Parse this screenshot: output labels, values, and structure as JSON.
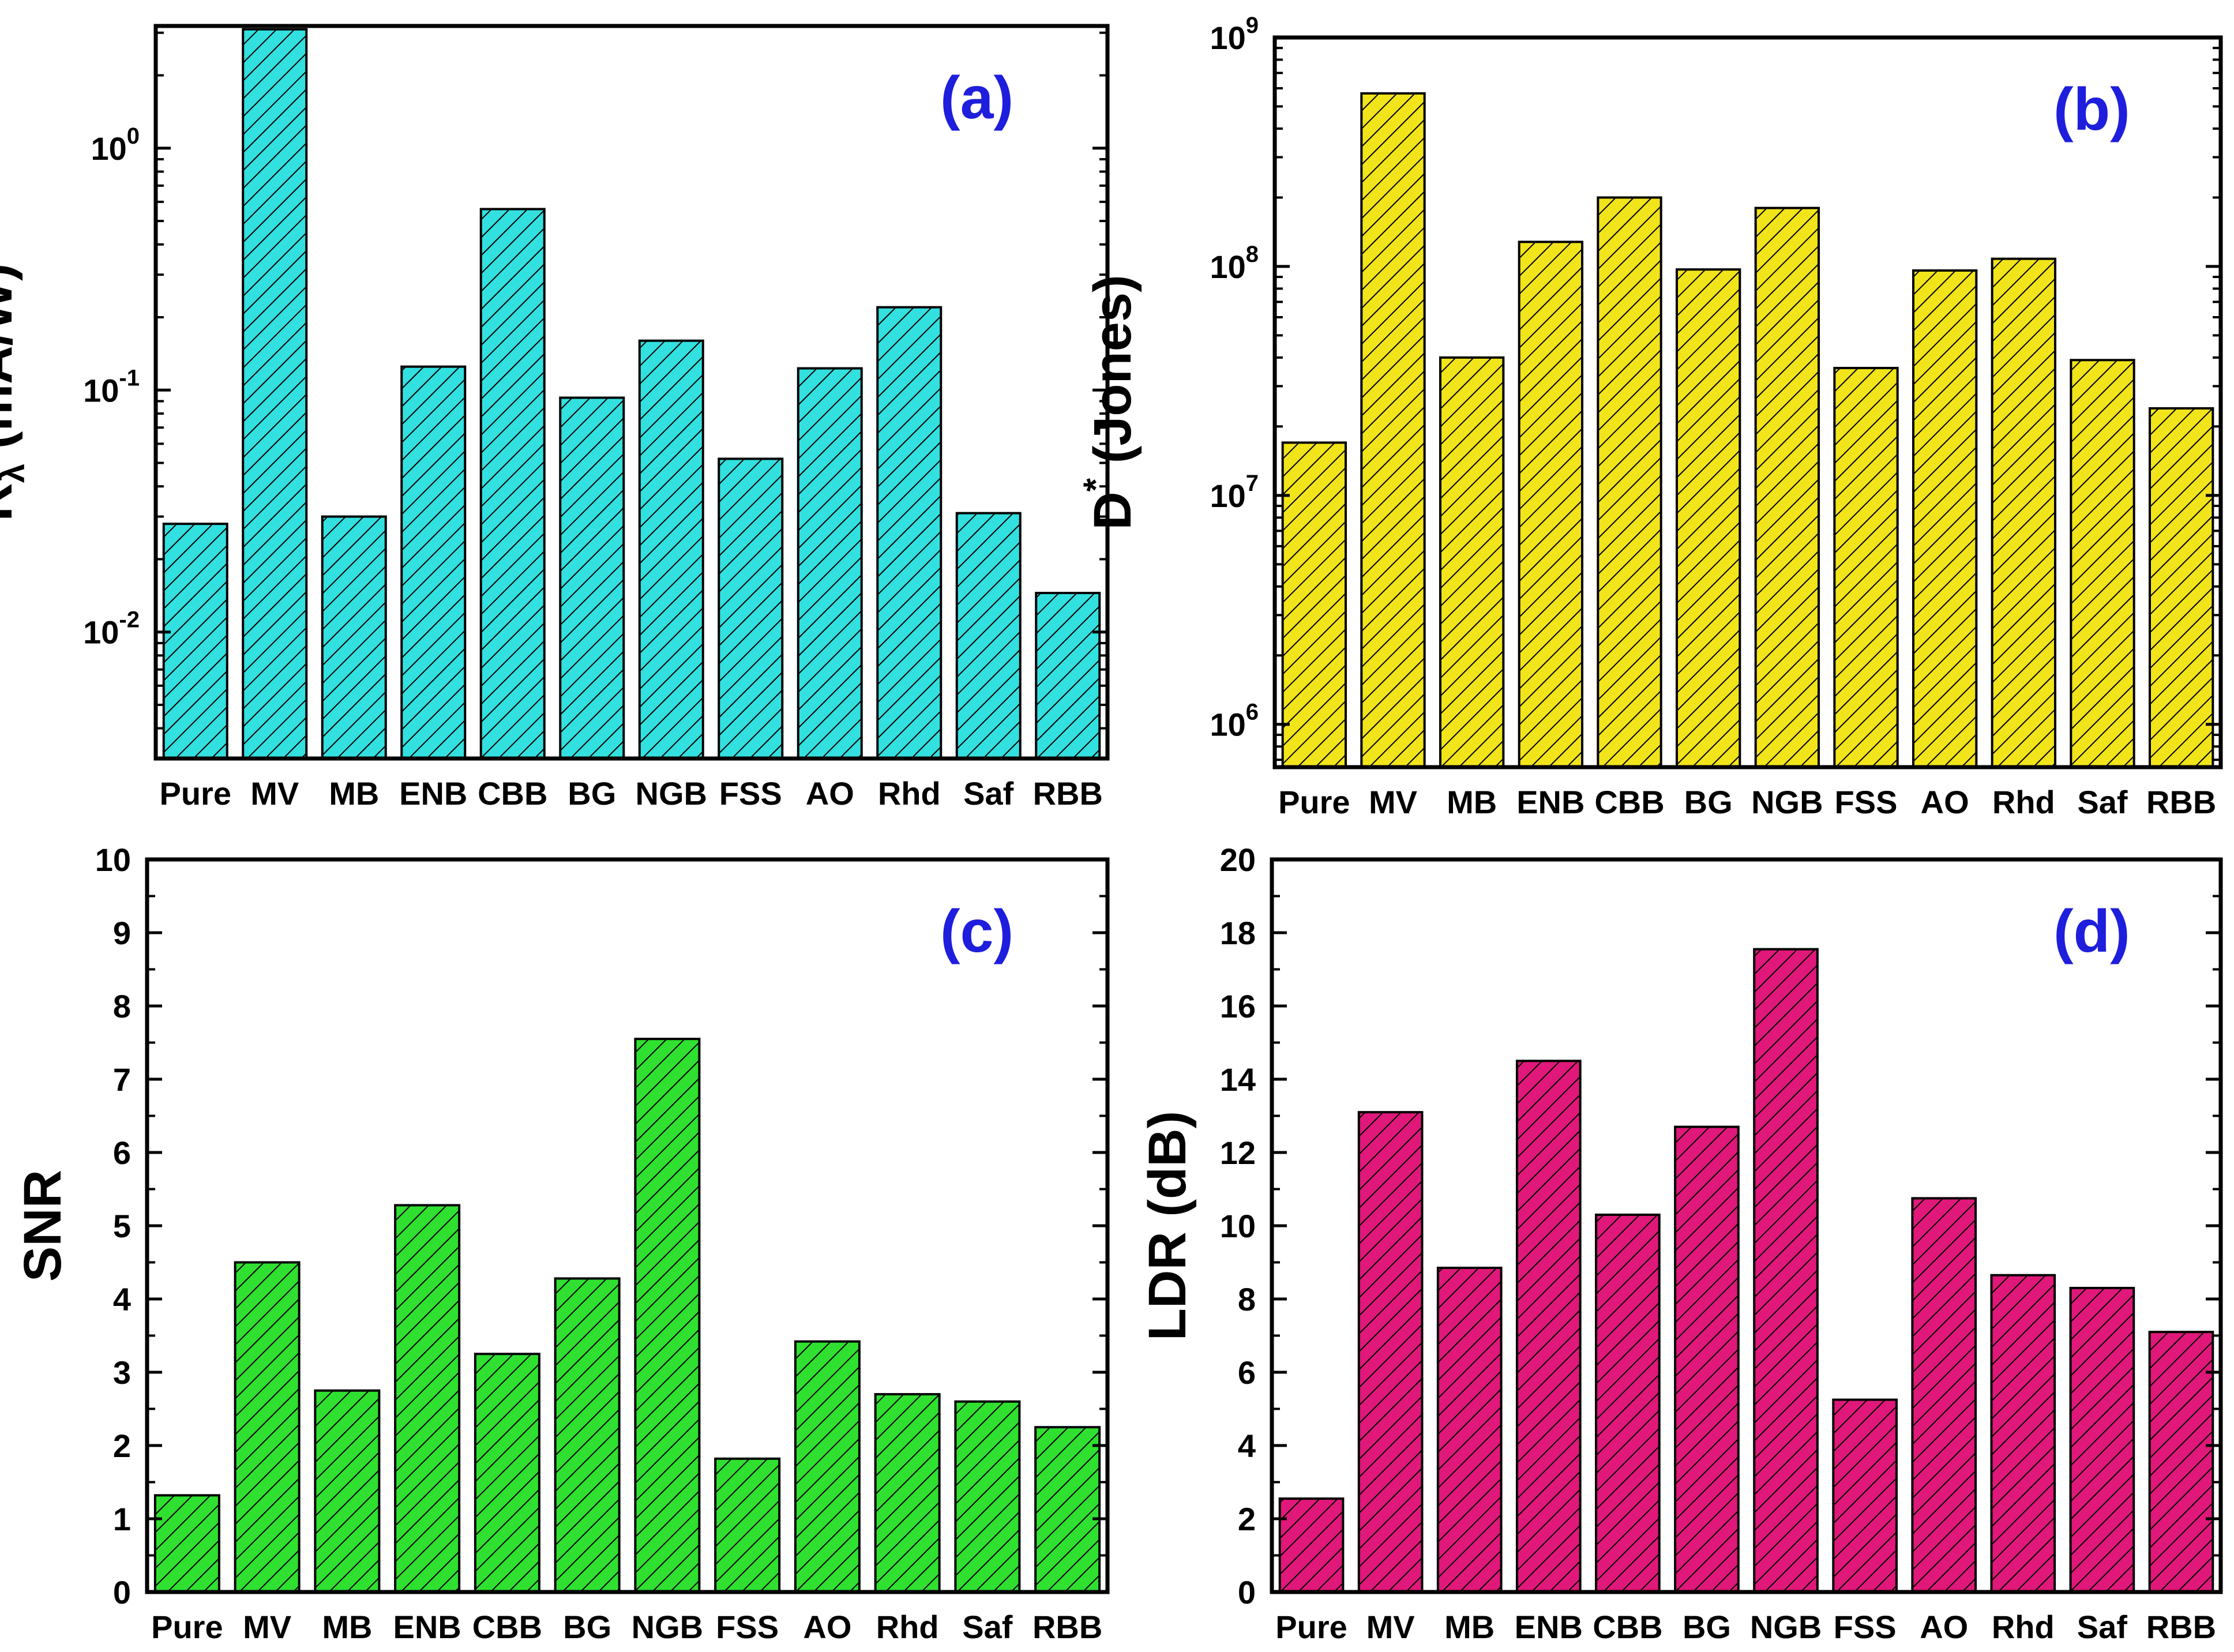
{
  "colors": {
    "a": "#33e0e0",
    "b": "#f2e41a",
    "c": "#30e030",
    "d": "#e0187a",
    "tag": "#1e1edc"
  },
  "chart_data": [
    {
      "id": "a",
      "type": "bar",
      "scale": "log",
      "tag": "(a)",
      "ylabel": "Rλ (mA/W)",
      "ylabel_main": "R",
      "ylabel_sub": "λ",
      "ylabel_rest": " (mA/W)",
      "ylim": [
        0.003,
        3.2
      ],
      "ticks": [
        {
          "v": 0.01,
          "base": "10",
          "exp": "-2"
        },
        {
          "v": 0.1,
          "base": "10",
          "exp": "-1"
        },
        {
          "v": 1,
          "base": "10",
          "exp": "0"
        }
      ],
      "categories": [
        "Pure",
        "MV",
        "MB",
        "ENB",
        "CBB",
        "BG",
        "NGB",
        "FSS",
        "AO",
        "Rhd",
        "Saf",
        "RBB"
      ],
      "values": [
        0.028,
        3.1,
        0.03,
        0.125,
        0.56,
        0.093,
        0.16,
        0.052,
        0.123,
        0.22,
        0.031,
        0.0145
      ]
    },
    {
      "id": "b",
      "type": "bar",
      "scale": "log",
      "tag": "(b)",
      "ylabel": "D* (Jones)",
      "ylabel_main": "D",
      "ylabel_sup": "*",
      "ylabel_rest": " (Jones)",
      "ylim": [
        650000,
        1000000000
      ],
      "ticks": [
        {
          "v": 1000000,
          "base": "10",
          "exp": "6"
        },
        {
          "v": 10000000,
          "base": "10",
          "exp": "7"
        },
        {
          "v": 100000000,
          "base": "10",
          "exp": "8"
        },
        {
          "v": 1000000000,
          "base": "10",
          "exp": "9"
        }
      ],
      "categories": [
        "Pure",
        "MV",
        "MB",
        "ENB",
        "CBB",
        "BG",
        "NGB",
        "FSS",
        "AO",
        "Rhd",
        "Saf",
        "RBB"
      ],
      "values": [
        17000000,
        570000000,
        40000000,
        128000000,
        200000000,
        97000000,
        180000000,
        36000000,
        96000000,
        108000000,
        39000000,
        24000000
      ]
    },
    {
      "id": "c",
      "type": "bar",
      "scale": "linear",
      "tag": "(c)",
      "ylabel": "SNR",
      "ylim": [
        0,
        10
      ],
      "ticks": [
        {
          "v": 0,
          "label": "0"
        },
        {
          "v": 1,
          "label": "1"
        },
        {
          "v": 2,
          "label": "2"
        },
        {
          "v": 3,
          "label": "3"
        },
        {
          "v": 4,
          "label": "4"
        },
        {
          "v": 5,
          "label": "5"
        },
        {
          "v": 6,
          "label": "6"
        },
        {
          "v": 7,
          "label": "7"
        },
        {
          "v": 8,
          "label": "8"
        },
        {
          "v": 9,
          "label": "9"
        },
        {
          "v": 10,
          "label": "10"
        }
      ],
      "categories": [
        "Pure",
        "MV",
        "MB",
        "ENB",
        "CBB",
        "BG",
        "NGB",
        "FSS",
        "AO",
        "Rhd",
        "Saf",
        "RBB"
      ],
      "values": [
        1.32,
        4.5,
        2.75,
        5.28,
        3.25,
        4.28,
        7.55,
        1.82,
        3.42,
        2.7,
        2.6,
        2.25
      ]
    },
    {
      "id": "d",
      "type": "bar",
      "scale": "linear",
      "tag": "(d)",
      "ylabel": "LDR (dB)",
      "ylim": [
        0,
        20
      ],
      "ticks": [
        {
          "v": 0,
          "label": "0"
        },
        {
          "v": 2,
          "label": "2"
        },
        {
          "v": 4,
          "label": "4"
        },
        {
          "v": 6,
          "label": "6"
        },
        {
          "v": 8,
          "label": "8"
        },
        {
          "v": 10,
          "label": "10"
        },
        {
          "v": 12,
          "label": "12"
        },
        {
          "v": 14,
          "label": "14"
        },
        {
          "v": 16,
          "label": "16"
        },
        {
          "v": 18,
          "label": "18"
        },
        {
          "v": 20,
          "label": "20"
        }
      ],
      "categories": [
        "Pure",
        "MV",
        "MB",
        "ENB",
        "CBB",
        "BG",
        "NGB",
        "FSS",
        "AO",
        "Rhd",
        "Saf",
        "RBB"
      ],
      "values": [
        2.55,
        13.1,
        8.85,
        14.5,
        10.3,
        12.7,
        17.55,
        5.25,
        10.75,
        8.65,
        8.3,
        7.1
      ]
    }
  ]
}
